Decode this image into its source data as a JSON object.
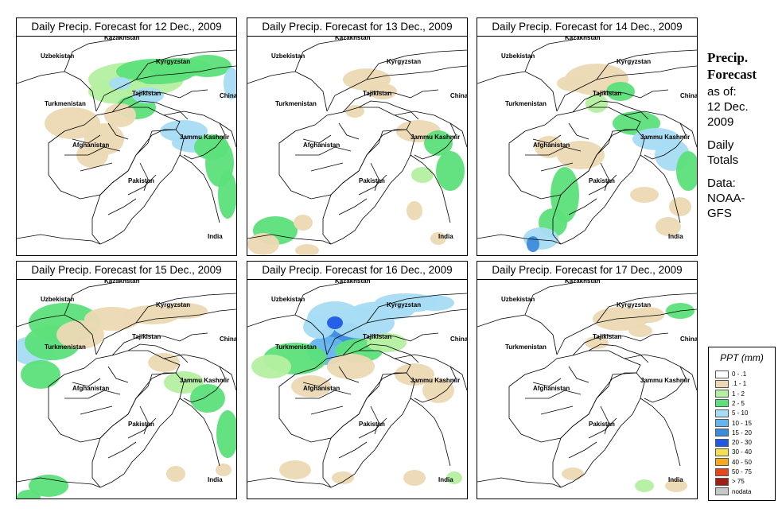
{
  "panels": [
    {
      "title": "Daily Precip. Forecast for  12 Dec., 2009",
      "pattern": "heavy-north"
    },
    {
      "title": "Daily Precip. Forecast for  13 Dec., 2009",
      "pattern": "light"
    },
    {
      "title": "Daily Precip. Forecast for  14 Dec., 2009",
      "pattern": "east-south"
    },
    {
      "title": "Daily Precip. Forecast for  15 Dec., 2009",
      "pattern": "northwest"
    },
    {
      "title": "Daily Precip. Forecast for  16 Dec., 2009",
      "pattern": "north-blue"
    },
    {
      "title": "Daily Precip. Forecast for  17 Dec., 2009",
      "pattern": "minimal"
    }
  ],
  "map_labels": {
    "uzbekistan": "Uzbekistan",
    "kazakhstan": "Kazakhstan",
    "kyrgyzstan": "Kyrgyzstan",
    "tajikistan": "Tajikistan",
    "turkmenistan": "Turkmenistan",
    "china": "China",
    "afghanistan": "Afghanistan",
    "jammu_kashmir": "Jammu Kashmir",
    "pakistan": "Pakistan",
    "india": "India"
  },
  "side": {
    "heading_line1": "Precip.",
    "heading_line2": "Forecast",
    "asof": "as of:",
    "date_line1": "12 Dec.",
    "date_line2": "2009",
    "totals_line1": "Daily",
    "totals_line2": "Totals",
    "data_label": "Data:",
    "source_line1": "NOAA-",
    "source_line2": "GFS"
  },
  "legend": {
    "title": "PPT (mm)",
    "entries": [
      {
        "label": "0 - .1",
        "color": "#ffffff"
      },
      {
        "label": ".1 - 1",
        "color": "#ecd9b4"
      },
      {
        "label": "1 - 2",
        "color": "#b4f0a0"
      },
      {
        "label": "2 - 5",
        "color": "#5ce07a"
      },
      {
        "label": "5 - 10",
        "color": "#a6dcf4"
      },
      {
        "label": "10 - 15",
        "color": "#64b4f0"
      },
      {
        "label": "15 - 20",
        "color": "#3c8cdc"
      },
      {
        "label": "20 - 30",
        "color": "#1e5ae6"
      },
      {
        "label": "30 - 40",
        "color": "#f5e050"
      },
      {
        "label": "40 - 50",
        "color": "#f5aa1e"
      },
      {
        "label": "50 - 75",
        "color": "#e6461e"
      },
      {
        "label": "> 75",
        "color": "#a01e14"
      },
      {
        "label": "nodata",
        "color": "#c8c8c8"
      }
    ]
  }
}
